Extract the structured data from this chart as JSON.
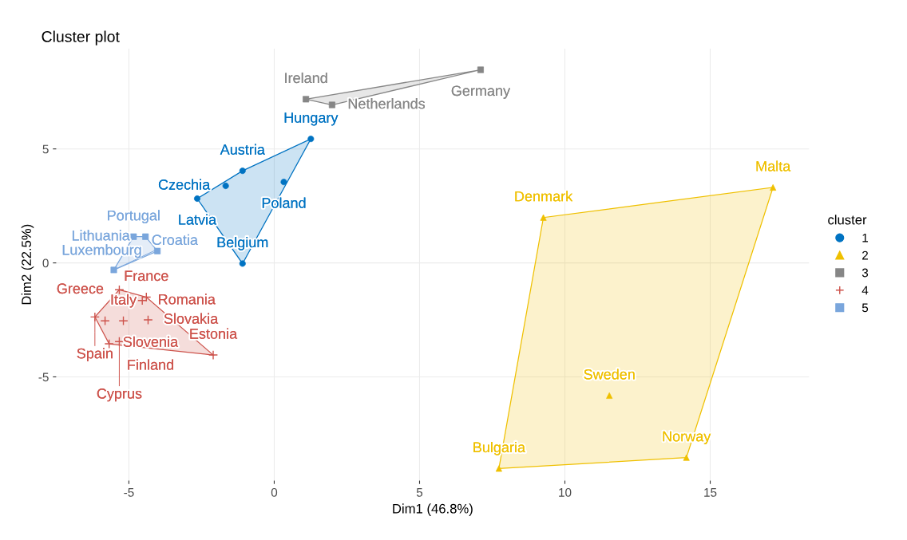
{
  "chart_data": {
    "type": "scatter",
    "title": "Cluster plot",
    "xlabel": "Dim1 (46.8%)",
    "ylabel": "Dim2 (22.5%)",
    "legend_title": "cluster",
    "legend": "right",
    "grid": true,
    "xlim": [
      -7.5,
      18.4
    ],
    "ylim": [
      -9.55,
      9.4
    ],
    "xticks": [
      -5,
      0,
      5,
      10,
      15
    ],
    "yticks": [
      -5,
      0,
      5
    ],
    "series": [
      {
        "name": "1",
        "color": "#0073c2",
        "marker": "circle",
        "x": [
          1.26,
          -1.09,
          -1.67,
          -2.65,
          0.33,
          -1.09
        ],
        "values": [
          5.44,
          4.04,
          3.38,
          2.82,
          3.55,
          -0.03
        ],
        "value_labels": [
          "Hungary",
          "Austria",
          "Czechia",
          "Latvia",
          "Poland",
          "Belgium"
        ]
      },
      {
        "name": "2",
        "color": "#efc000",
        "marker": "triangle",
        "x": [
          9.26,
          17.16,
          11.53,
          14.18,
          7.73
        ],
        "values": [
          1.99,
          3.31,
          -5.82,
          -8.54,
          -9.02
        ],
        "value_labels": [
          "Denmark",
          "Malta",
          "Sweden",
          "Norway",
          "Bulgaria"
        ]
      },
      {
        "name": "3",
        "color": "#868686",
        "marker": "square",
        "x": [
          1.09,
          1.99,
          7.1
        ],
        "values": [
          7.18,
          6.93,
          8.47
        ],
        "value_labels": [
          "Ireland",
          "Netherlands",
          "Germany"
        ]
      },
      {
        "name": "4",
        "color": "#cd534c",
        "marker": "cross",
        "x": [
          -5.33,
          -4.4,
          -4.54,
          -5.82,
          -6.17,
          -4.34,
          -5.19,
          -5.68,
          -5.33,
          -2.1
        ],
        "values": [
          -1.18,
          -1.5,
          -1.65,
          -2.54,
          -2.37,
          -2.5,
          -2.54,
          -3.55,
          -3.45,
          -4.04
        ],
        "value_labels": [
          "Greece",
          "France",
          "Romania",
          "Slovenia",
          "Spain",
          "Slovakia",
          "Italy",
          "Finland",
          "Cyprus",
          "Estonia"
        ]
      },
      {
        "name": "5",
        "color": "#7aa6dc",
        "marker": "square",
        "x": [
          -4.84,
          -4.43,
          -4.02,
          -5.52
        ],
        "values": [
          1.15,
          1.15,
          0.52,
          -0.31
        ],
        "value_labels": [
          "Portugal",
          "Lithuania",
          "Luxembourg",
          "Croatia"
        ]
      }
    ]
  }
}
